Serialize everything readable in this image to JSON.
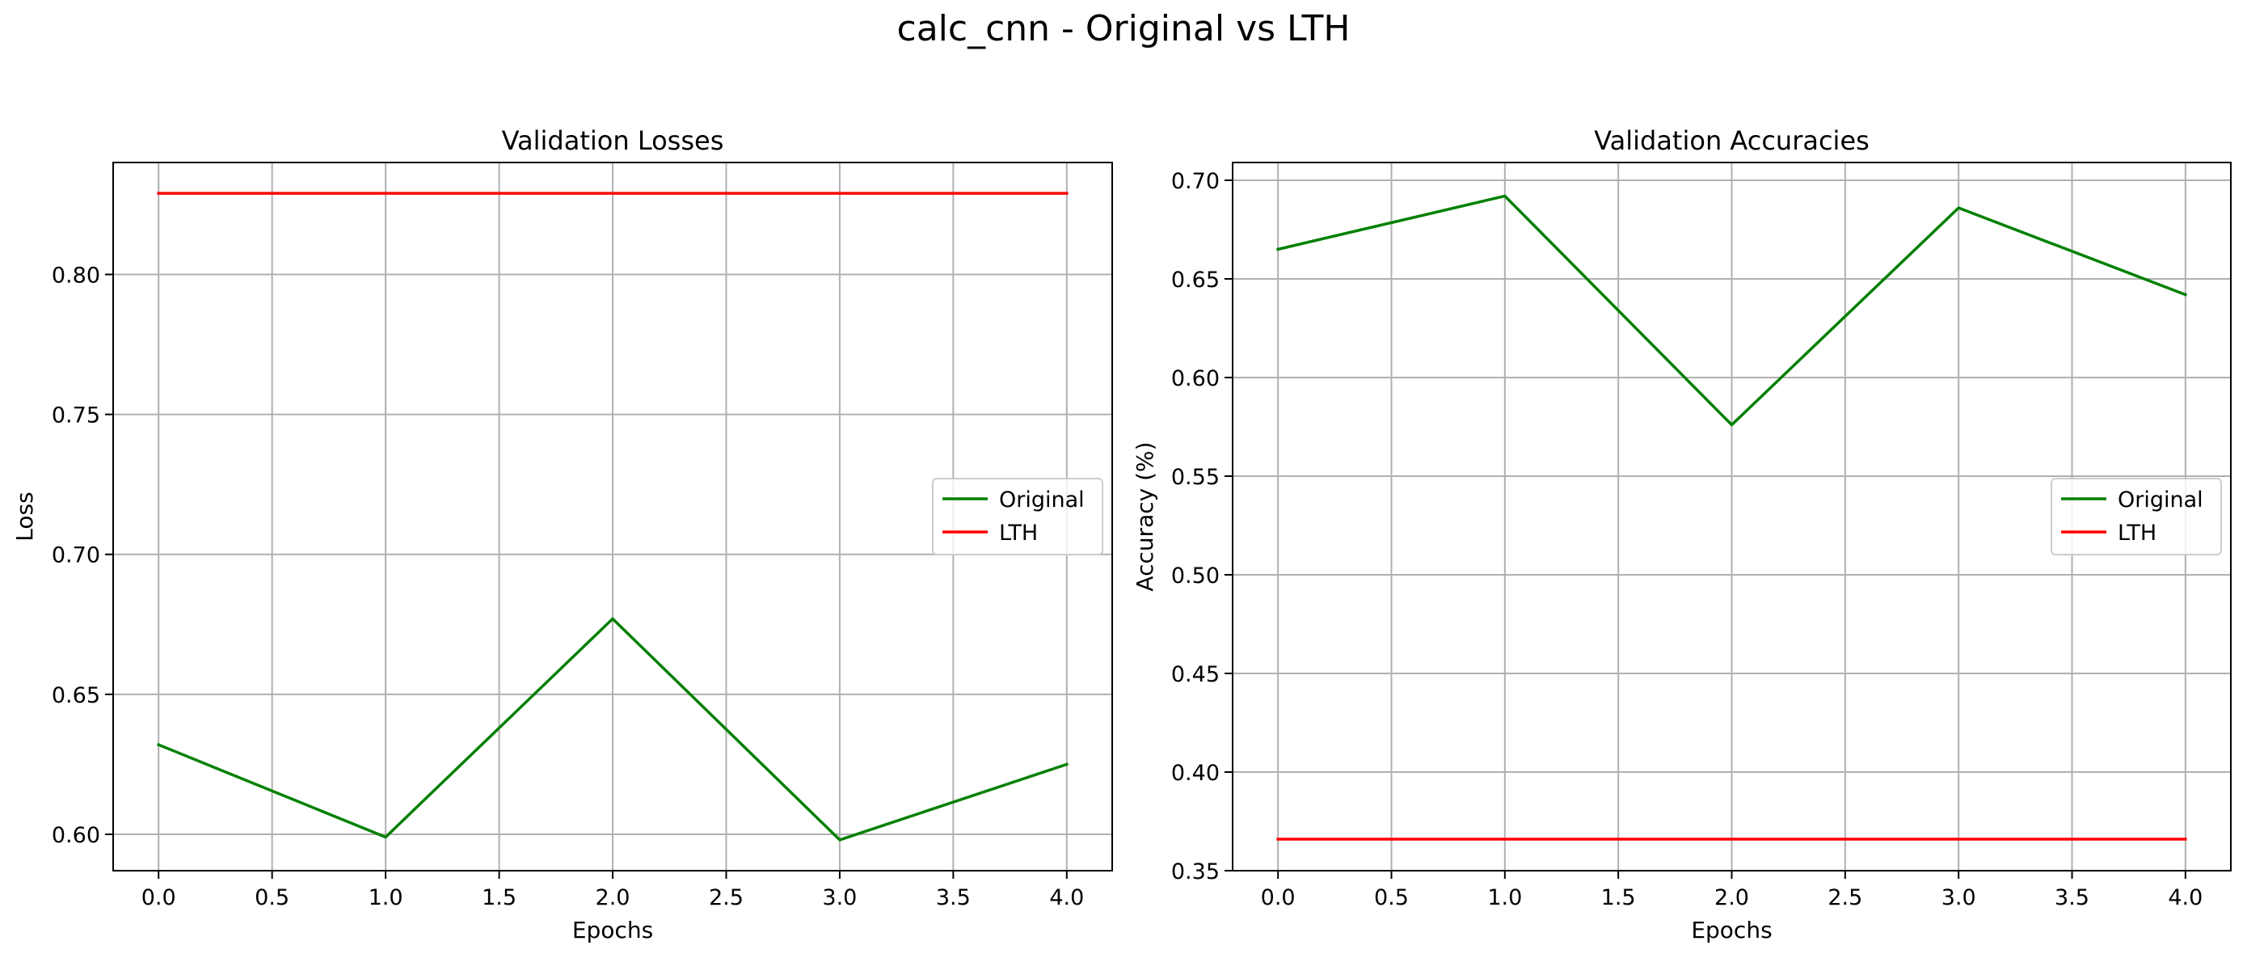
{
  "figure": {
    "suptitle": "calc_cnn - Original vs LTH"
  },
  "chart_data": [
    {
      "type": "line",
      "title": "Validation Losses",
      "xlabel": "Epochs",
      "ylabel": "Loss",
      "x": [
        0,
        1,
        2,
        3,
        4
      ],
      "xlim": [
        -0.2,
        4.2
      ],
      "ylim": [
        0.587,
        0.84
      ],
      "xticks": [
        0.0,
        0.5,
        1.0,
        1.5,
        2.0,
        2.5,
        3.0,
        3.5,
        4.0
      ],
      "xtick_labels": [
        "0.0",
        "0.5",
        "1.0",
        "1.5",
        "2.0",
        "2.5",
        "3.0",
        "3.5",
        "4.0"
      ],
      "yticks": [
        0.6,
        0.65,
        0.7,
        0.75,
        0.8
      ],
      "ytick_labels": [
        "0.60",
        "0.65",
        "0.70",
        "0.75",
        "0.80"
      ],
      "grid": true,
      "legend_position": "center-right",
      "series": [
        {
          "name": "Original",
          "color": "#008000",
          "values": [
            0.632,
            0.599,
            0.677,
            0.598,
            0.625
          ]
        },
        {
          "name": "LTH",
          "color": "#ff0000",
          "values": [
            0.829,
            0.829,
            0.829,
            0.829,
            0.829
          ]
        }
      ]
    },
    {
      "type": "line",
      "title": "Validation Accuracies",
      "xlabel": "Epochs",
      "ylabel": "Accuracy (%)",
      "x": [
        0,
        1,
        2,
        3,
        4
      ],
      "xlim": [
        -0.2,
        4.2
      ],
      "ylim": [
        0.35,
        0.709
      ],
      "xticks": [
        0.0,
        0.5,
        1.0,
        1.5,
        2.0,
        2.5,
        3.0,
        3.5,
        4.0
      ],
      "xtick_labels": [
        "0.0",
        "0.5",
        "1.0",
        "1.5",
        "2.0",
        "2.5",
        "3.0",
        "3.5",
        "4.0"
      ],
      "yticks": [
        0.35,
        0.4,
        0.45,
        0.5,
        0.55,
        0.6,
        0.65,
        0.7
      ],
      "ytick_labels": [
        "0.35",
        "0.40",
        "0.45",
        "0.50",
        "0.55",
        "0.60",
        "0.65",
        "0.70"
      ],
      "grid": true,
      "legend_position": "center-right",
      "series": [
        {
          "name": "Original",
          "color": "#008000",
          "values": [
            0.665,
            0.692,
            0.576,
            0.686,
            0.642
          ]
        },
        {
          "name": "LTH",
          "color": "#ff0000",
          "values": [
            0.366,
            0.366,
            0.366,
            0.366,
            0.366
          ]
        }
      ]
    }
  ]
}
